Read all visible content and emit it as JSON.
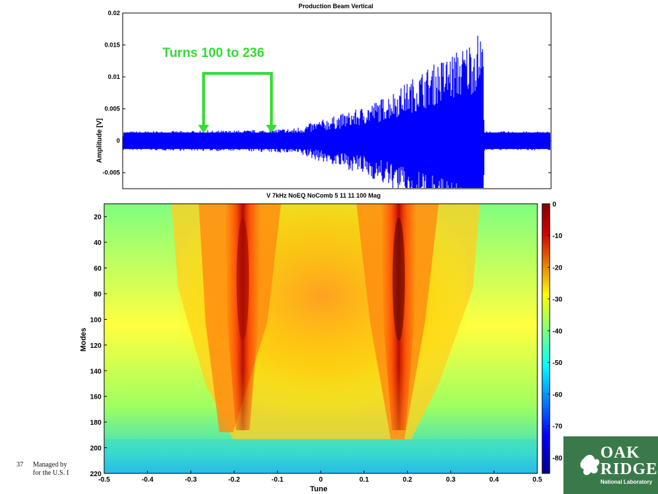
{
  "slide": {
    "page_number": "37",
    "footer_line1": "Managed by",
    "footer_line2": "for the U.S. I",
    "logo_line1": "OAK",
    "logo_line2": "RIDGE",
    "logo_line3": "National Laboratory",
    "logo_color": "#3a7a4a"
  },
  "annotation": {
    "text": "Turns 100 to 236",
    "color": "#33dd33"
  },
  "chart_data": [
    {
      "type": "line",
      "title": "Production Beam Vertical",
      "xlabel": "",
      "ylabel": "Amplitude [V]",
      "ylim": [
        -0.0075,
        0.02
      ],
      "yticks": [
        "0.02",
        "0.015",
        "0.01",
        "0.005",
        "0",
        "-0.005"
      ],
      "grid": false,
      "series": [
        {
          "color": "#0000ff",
          "envelope_points": [
            [
              0.0,
              0.0015
            ],
            [
              0.2,
              0.0016
            ],
            [
              0.3,
              0.0017
            ],
            [
              0.4,
              0.002
            ],
            [
              0.5,
              0.004
            ],
            [
              0.55,
              0.005
            ],
            [
              0.6,
              0.0065
            ],
            [
              0.65,
              0.0085
            ],
            [
              0.7,
              0.011
            ],
            [
              0.75,
              0.013
            ],
            [
              0.8,
              0.015
            ],
            [
              0.82,
              0.0165
            ],
            [
              0.84,
              0.0175
            ],
            [
              0.845,
              0.0015
            ],
            [
              1.0,
              0.0015
            ]
          ]
        }
      ]
    },
    {
      "type": "heatmap",
      "title": "V 7kHz NoEQ NoComb 5 11 11 100 Mag",
      "xlabel": "Tune",
      "ylabel": "Modes",
      "xlim": [
        -0.5,
        0.5
      ],
      "ylim": [
        10,
        220
      ],
      "xticks": [
        "-0.5",
        "-0.4",
        "-0.3",
        "-0.2",
        "-0.1",
        "0",
        "0.1",
        "0.2",
        "0.3",
        "0.4",
        "0.5"
      ],
      "yticks": [
        "20",
        "40",
        "60",
        "80",
        "100",
        "120",
        "140",
        "160",
        "180",
        "200",
        "220"
      ],
      "colorbar": {
        "ticks": [
          "0",
          "-10",
          "-20",
          "-30",
          "-40",
          "-50",
          "-60",
          "-70",
          "-80"
        ],
        "range": [
          -85,
          0
        ],
        "colormap": "jet"
      },
      "peaks": [
        {
          "tune": -0.18,
          "peak_db": -5
        },
        {
          "tune": 0.18,
          "peak_db": 0
        }
      ]
    }
  ]
}
